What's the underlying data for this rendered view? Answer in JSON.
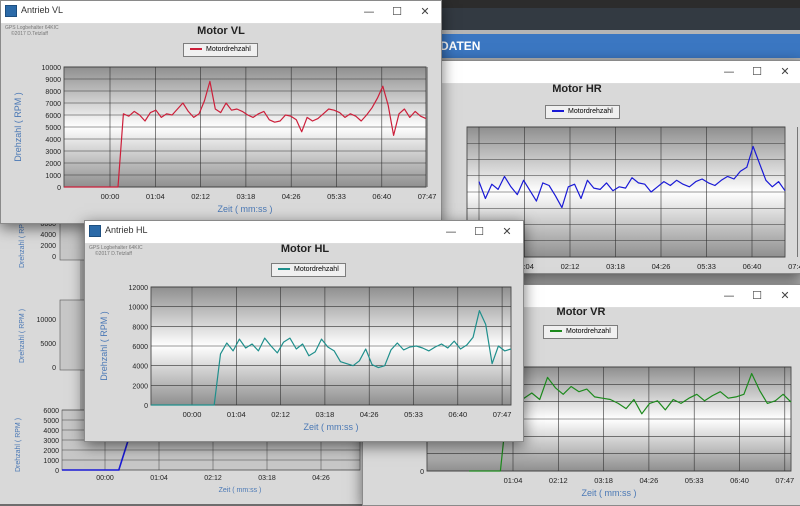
{
  "background_app": {
    "header_text": "DATEN"
  },
  "windows": [
    {
      "id": "vl",
      "title": "Antrieb VL",
      "chart_title": "Motor VL",
      "legend": "Motordrehzahl",
      "watermark": [
        "GPS Logbehalter 64KIC",
        "©2017 D.Tetzlaff"
      ],
      "color": "#cc1f3a"
    },
    {
      "id": "hr",
      "title": "",
      "chart_title": "Motor HR",
      "legend": "Motordrehzahl",
      "color": "#1a1ad6"
    },
    {
      "id": "hl",
      "title": "Antrieb HL",
      "chart_title": "Motor HL",
      "legend": "Motordrehzahl",
      "watermark": [
        "GPS Logbehalter 64KIC",
        "©2017 D.Tetzlaff"
      ],
      "color": "#1f8f8c"
    },
    {
      "id": "vr",
      "title": "",
      "chart_title": "Motor VR",
      "legend": "Motordrehzahl",
      "color": "#1d8a1d"
    }
  ],
  "window_controls": {
    "minimize": "—",
    "maximize": "☐",
    "close": "✕"
  },
  "chart_data": [
    {
      "type": "line",
      "title": "Motor VL",
      "xlabel": "Zeit ( mm:ss )",
      "ylabel": "Drehzahl ( RPM )",
      "xticks": [
        "00:00",
        "01:04",
        "02:12",
        "03:18",
        "04:26",
        "05:33",
        "06:40",
        "07:47"
      ],
      "yticks": [
        "0",
        "1000",
        "2000",
        "3000",
        "4000",
        "5000",
        "6000",
        "7000",
        "8000",
        "9000",
        "10000"
      ],
      "ylim": [
        0,
        10000
      ],
      "series": [
        {
          "name": "Motordrehzahl",
          "values": [
            0,
            0,
            0,
            0,
            0,
            0,
            0,
            0,
            0,
            0,
            0,
            6100,
            5900,
            6300,
            6000,
            5500,
            6200,
            6400,
            5800,
            6100,
            6000,
            6500,
            7000,
            6300,
            5800,
            6100,
            7200,
            8800,
            6500,
            6200,
            7000,
            6400,
            6500,
            6300,
            6000,
            5800,
            6100,
            6300,
            5600,
            5400,
            5500,
            6000,
            5900,
            5600,
            4600,
            5800,
            5500,
            5700,
            6100,
            6500,
            6400,
            6200,
            5800,
            6100,
            5900,
            5500,
            6000,
            6600,
            7400,
            8400,
            6800,
            4300,
            6100,
            6500,
            5800,
            6300,
            5900,
            5700
          ]
        }
      ]
    },
    {
      "type": "line",
      "title": "Motor HR",
      "xlabel": "Zeit ( mm:ss )",
      "ylabel": "",
      "xticks": [
        "00:00",
        "01:04",
        "02:12",
        "03:18",
        "04:26",
        "05:33",
        "06:40",
        "07:47"
      ],
      "series": [
        {
          "name": "Motordrehzahl",
          "values": [
            5800,
            4500,
            5600,
            5200,
            6200,
            5400,
            4800,
            5900,
            5100,
            4300,
            5700,
            5500,
            4700,
            3800,
            5400,
            5600,
            4500,
            5900,
            5300,
            5200,
            5700,
            5100,
            5400,
            5300,
            6100,
            5700,
            5600,
            5000,
            5400,
            5800,
            5500,
            5900,
            5600,
            5400,
            5800,
            6000,
            5700,
            5500,
            5900,
            6200,
            6000,
            6600,
            6900,
            8500,
            7200,
            5900,
            5400,
            5800,
            5100
          ]
        }
      ]
    },
    {
      "type": "line",
      "title": "Motor HL",
      "xlabel": "Zeit ( mm:ss )",
      "ylabel": "Drehzahl ( RPM )",
      "xticks": [
        "00:00",
        "01:04",
        "02:12",
        "03:18",
        "04:26",
        "05:33",
        "06:40",
        "07:47"
      ],
      "yticks": [
        "0",
        "2000",
        "4000",
        "6000",
        "8000",
        "10000",
        "12000"
      ],
      "ylim": [
        0,
        12000
      ],
      "series": [
        {
          "name": "Motordrehzahl",
          "values": [
            0,
            0,
            0,
            0,
            0,
            0,
            0,
            0,
            0,
            0,
            0,
            5200,
            6300,
            5500,
            6700,
            5800,
            6200,
            5500,
            6800,
            6000,
            5300,
            6400,
            6800,
            5700,
            6200,
            5000,
            5400,
            6700,
            5900,
            5500,
            4400,
            4200,
            4000,
            4500,
            5700,
            4100,
            3800,
            4000,
            5600,
            6300,
            5600,
            5900,
            6000,
            5800,
            5500,
            5900,
            6200,
            5800,
            6500,
            5700,
            6100,
            6900,
            9600,
            8200,
            4200,
            6000,
            5500,
            5700
          ]
        }
      ]
    },
    {
      "type": "line",
      "title": "Motor VR",
      "xlabel": "Zeit ( mm:ss )",
      "ylabel": "",
      "xticks": [
        "01:04",
        "02:12",
        "03:18",
        "04:26",
        "05:33",
        "06:40",
        "07:47"
      ],
      "yticks": [
        "0",
        "2000"
      ],
      "series": [
        {
          "name": "Motordrehzahl",
          "values": [
            0,
            0,
            0,
            0,
            0,
            5800,
            6200,
            5600,
            6000,
            5500,
            7200,
            6400,
            5900,
            6500,
            6100,
            6300,
            5700,
            5600,
            5500,
            5200,
            4800,
            5500,
            4400,
            5200,
            5400,
            4700,
            5500,
            5200,
            5600,
            5900,
            5400,
            5800,
            6100,
            5600,
            5700,
            5900,
            7500,
            6200,
            5200,
            5400,
            5900,
            5300
          ]
        }
      ]
    },
    {
      "type": "line",
      "title": "",
      "xlabel": "Zeit ( mm:ss )",
      "ylabel": "Drehzahl ( RPM )",
      "xticks": [
        "00:00",
        "01:04",
        "02:12",
        "03:18",
        "04:26"
      ],
      "yticks": [
        "0",
        "1000",
        "2000",
        "3000",
        "4000",
        "5000",
        "6000"
      ],
      "series": [
        {
          "name": "",
          "values": [
            0,
            0,
            0,
            0,
            0,
            4500,
            5200,
            4700,
            5500,
            4600,
            4900,
            5300,
            4600,
            5100,
            4800,
            5600,
            4700,
            5000,
            5400,
            4600,
            5200,
            4900
          ]
        }
      ]
    }
  ]
}
